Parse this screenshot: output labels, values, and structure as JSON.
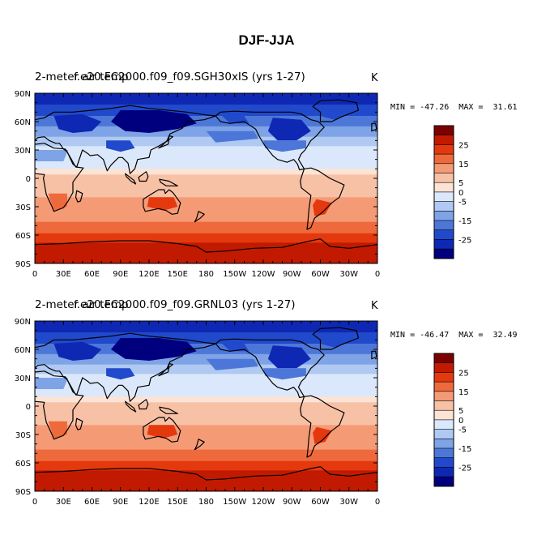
{
  "figure": {
    "title": "DJF-JJA"
  },
  "panels": [
    {
      "left_title": "2-meter air temp",
      "case_title": "f.e20.FC2000.f09_f09.SGH30xIS (yrs 1-27)",
      "units": "K",
      "min_label": "MIN = -47.26",
      "max_label": "MAX =  31.61"
    },
    {
      "left_title": "2-meter air temp",
      "case_title": "f.e20.FC2000.f09_f09.GRNL03 (yrs 1-27)",
      "units": "K",
      "min_label": "MIN = -46.47",
      "max_label": "MAX =  32.49"
    }
  ],
  "axes": {
    "x_ticks": [
      "0",
      "30E",
      "60E",
      "90E",
      "120E",
      "150E",
      "180",
      "150W",
      "120W",
      "90W",
      "60W",
      "30W",
      "0"
    ],
    "y_ticks": [
      "90N",
      "60N",
      "30N",
      "0",
      "30S",
      "60S",
      "90S"
    ]
  },
  "colorbar": {
    "labels": [
      "25",
      "15",
      "5",
      "0",
      "-5",
      "-15",
      "-25"
    ],
    "colors": [
      "#7d0000",
      "#c21a00",
      "#e4390f",
      "#ee6a3c",
      "#f49b76",
      "#f7c1a6",
      "#fde3d4",
      "#dbe8fb",
      "#afc9f2",
      "#7ea3e6",
      "#4c77d8",
      "#2149cb",
      "#0f28b3",
      "#00007f"
    ]
  }
}
